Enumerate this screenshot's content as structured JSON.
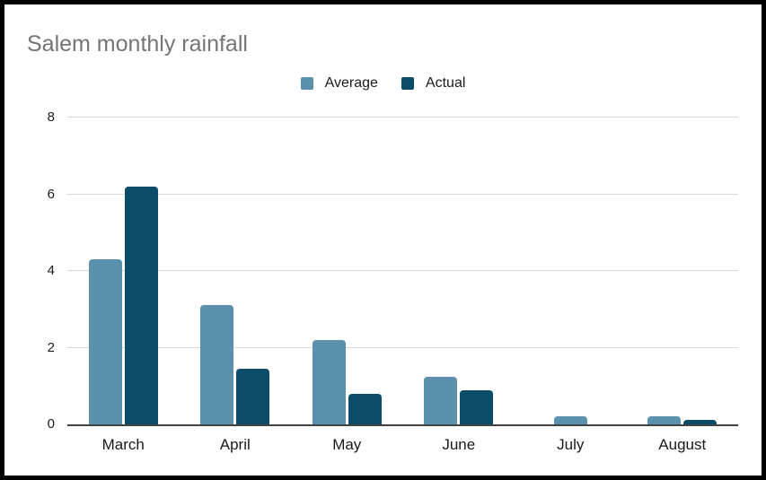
{
  "chart_data": {
    "type": "bar",
    "title": "Salem monthly rainfall",
    "categories": [
      "March",
      "April",
      "May",
      "June",
      "July",
      "August"
    ],
    "series": [
      {
        "name": "Average",
        "color": "#5b91ad",
        "values": [
          4.3,
          3.1,
          2.2,
          1.25,
          0.2,
          0.2
        ]
      },
      {
        "name": "Actual",
        "color": "#0b4d68",
        "values": [
          6.2,
          1.45,
          0.8,
          0.9,
          0,
          0.12
        ]
      }
    ],
    "xlabel": "",
    "ylabel": "",
    "ylim": [
      0,
      8
    ],
    "yticks": [
      0,
      2,
      4,
      6,
      8
    ],
    "grid": true,
    "legend_position": "top-center"
  },
  "styles": {
    "frame_border_color": "#000000",
    "background_color": "#ffffff",
    "title_color": "#757575",
    "gridline_color": "#d9d9d9",
    "axis_line_color": "#424242",
    "text_color": "#1a1a1a",
    "average_color": "#5b91ad",
    "actual_color": "#0b4d68"
  }
}
